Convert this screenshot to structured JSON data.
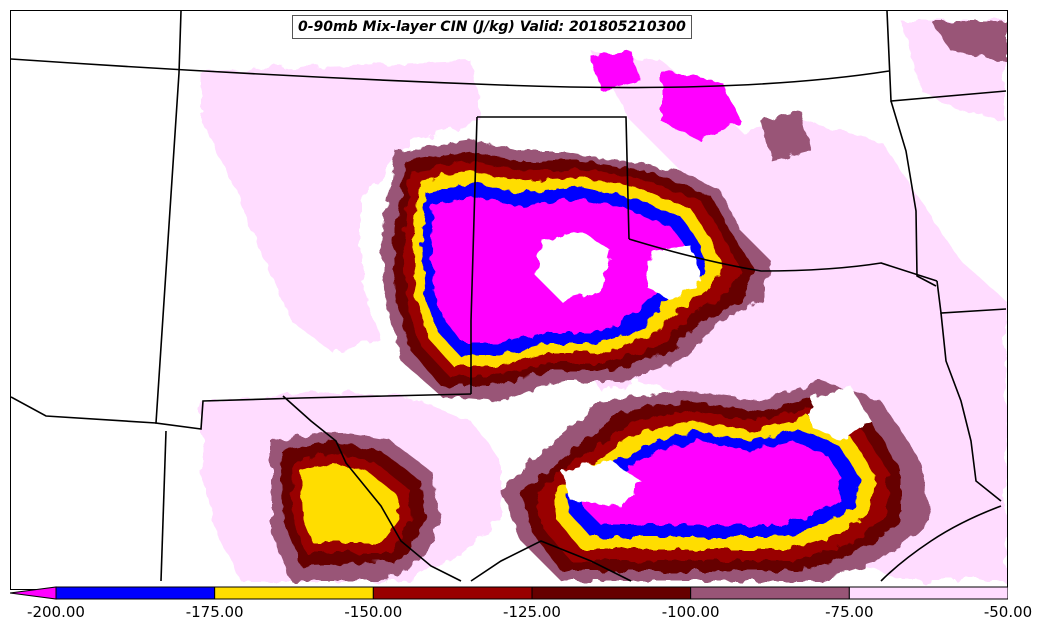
{
  "title": "0-90mb Mix-layer CIN (J/kg) Valid: 201805210300",
  "colors": {
    "lt_minus_200": "#ff00ff",
    "b200_175": "#0000ff",
    "b175_150": "#ffdd00",
    "b150_125": "#990000",
    "b125_100": "#660000",
    "b100_75": "#995577",
    "b75_50": "#ffdcff",
    "background": "#ffffff",
    "boundary": "#000000"
  },
  "colorbar": {
    "ticks": [
      "-200.00",
      "-175.00",
      "-150.00",
      "-125.00",
      "-100.00",
      "-75.00",
      "-50.00"
    ],
    "bins": [
      {
        "from": -200,
        "to": -175,
        "color_key": "b200_175"
      },
      {
        "from": -175,
        "to": -150,
        "color_key": "b175_150"
      },
      {
        "from": -150,
        "to": -125,
        "color_key": "b150_125"
      },
      {
        "from": -125,
        "to": -100,
        "color_key": "b125_100"
      },
      {
        "from": -100,
        "to": -75,
        "color_key": "b100_75"
      },
      {
        "from": -75,
        "to": -50,
        "color_key": "b75_50"
      }
    ],
    "under_color_key": "lt_minus_200"
  }
}
